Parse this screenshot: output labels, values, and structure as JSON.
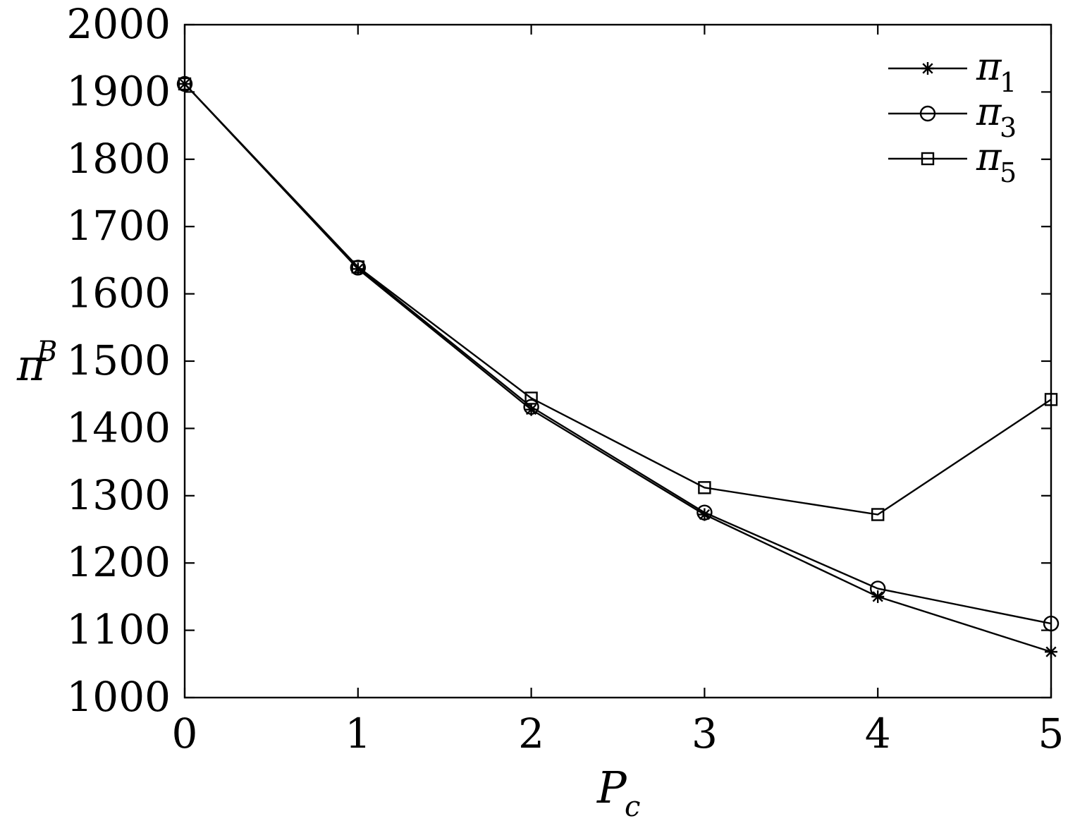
{
  "chart_data": {
    "type": "line",
    "xlabel": {
      "main": "P",
      "sub": "c"
    },
    "ylabel": {
      "main": "π",
      "sub": "B"
    },
    "xlim": [
      0,
      5
    ],
    "ylim": [
      1000,
      2000
    ],
    "xticks": [
      0,
      1,
      2,
      3,
      4,
      5
    ],
    "yticks": [
      1000,
      1100,
      1200,
      1300,
      1400,
      1500,
      1600,
      1700,
      1800,
      1900,
      2000
    ],
    "grid": false,
    "legend_position": "top-right",
    "x": [
      0,
      1,
      2,
      3,
      4,
      5
    ],
    "series": [
      {
        "name": "π",
        "sub": "1",
        "marker": "star",
        "values": [
          1912,
          1637,
          1428,
          1272,
          1150,
          1068
        ]
      },
      {
        "name": "π",
        "sub": "3",
        "marker": "circle",
        "values": [
          1912,
          1639,
          1432,
          1275,
          1162,
          1110
        ]
      },
      {
        "name": "π",
        "sub": "5",
        "marker": "square",
        "values": [
          1912,
          1640,
          1445,
          1312,
          1272,
          1443
        ]
      }
    ]
  }
}
